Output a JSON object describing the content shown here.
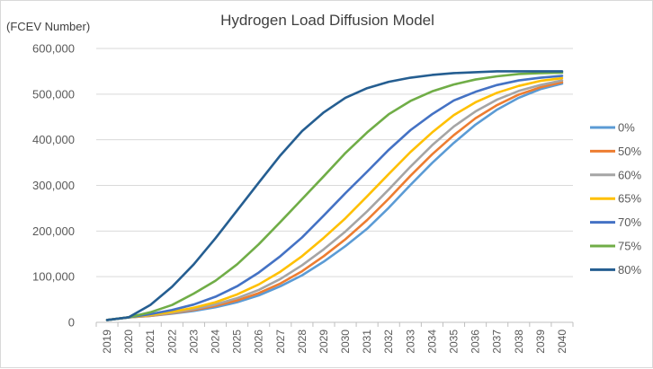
{
  "chart_data": {
    "type": "line",
    "title": "Hydrogen Load Diffusion Model",
    "ylabel": "(FCEV Number)",
    "xlabel": "",
    "ylim": [
      0,
      600000
    ],
    "yticks": [
      0,
      100000,
      200000,
      300000,
      400000,
      500000,
      600000
    ],
    "ytick_labels": [
      "0",
      "100,000",
      "200,000",
      "300,000",
      "400,000",
      "500,000",
      "600,000"
    ],
    "x": [
      "2019",
      "2020",
      "2021",
      "2022",
      "2023",
      "2024",
      "2025",
      "2026",
      "2027",
      "2028",
      "2029",
      "2030",
      "2031",
      "2032",
      "2033",
      "2034",
      "2035",
      "2036",
      "2037",
      "2038",
      "2039",
      "2040"
    ],
    "grid": true,
    "legend_position": "right",
    "series": [
      {
        "name": "0%",
        "color": "#5b9bd5",
        "values": [
          5000,
          11000,
          14000,
          19000,
          25000,
          33000,
          44000,
          59000,
          79000,
          103000,
          133000,
          167000,
          205000,
          251000,
          301000,
          349000,
          393000,
          433000,
          466000,
          492000,
          511000,
          523000
        ]
      },
      {
        "name": "50%",
        "color": "#ed7d31",
        "values": [
          5000,
          11000,
          14000,
          20000,
          27000,
          36000,
          48000,
          64000,
          85000,
          112000,
          145000,
          182000,
          224000,
          271000,
          321000,
          368000,
          410000,
          447000,
          476000,
          499000,
          515000,
          526000
        ]
      },
      {
        "name": "60%",
        "color": "#a5a5a5",
        "values": [
          5000,
          11000,
          15000,
          21000,
          29000,
          39000,
          53000,
          71000,
          95000,
          125000,
          160000,
          199000,
          243000,
          291000,
          341000,
          388000,
          429000,
          462000,
          488000,
          507000,
          520000,
          530000
        ]
      },
      {
        "name": "65%",
        "color": "#ffc000",
        "values": [
          5000,
          11000,
          16000,
          23000,
          32000,
          44000,
          61000,
          83000,
          111000,
          145000,
          185000,
          228000,
          276000,
          325000,
          373000,
          416000,
          454000,
          482000,
          503000,
          518000,
          529000,
          535000
        ]
      },
      {
        "name": "70%",
        "color": "#4472c4",
        "values": [
          5000,
          11000,
          18000,
          27000,
          39000,
          56000,
          79000,
          109000,
          145000,
          186000,
          234000,
          283000,
          330000,
          378000,
          421000,
          456000,
          486000,
          505000,
          520000,
          530000,
          536000,
          540000
        ]
      },
      {
        "name": "75%",
        "color": "#70ad47",
        "values": [
          5000,
          11000,
          22000,
          38000,
          63000,
          91000,
          127000,
          171000,
          220000,
          270000,
          320000,
          371000,
          416000,
          456000,
          485000,
          506000,
          521000,
          532000,
          539000,
          544000,
          546000,
          547000
        ]
      },
      {
        "name": "80%",
        "color": "#255e91",
        "values": [
          5000,
          11000,
          38000,
          78000,
          127000,
          184000,
          245000,
          306000,
          366000,
          419000,
          460000,
          492000,
          513000,
          527000,
          536000,
          542000,
          546000,
          548000,
          550000,
          550000,
          550000,
          550000
        ]
      }
    ]
  }
}
